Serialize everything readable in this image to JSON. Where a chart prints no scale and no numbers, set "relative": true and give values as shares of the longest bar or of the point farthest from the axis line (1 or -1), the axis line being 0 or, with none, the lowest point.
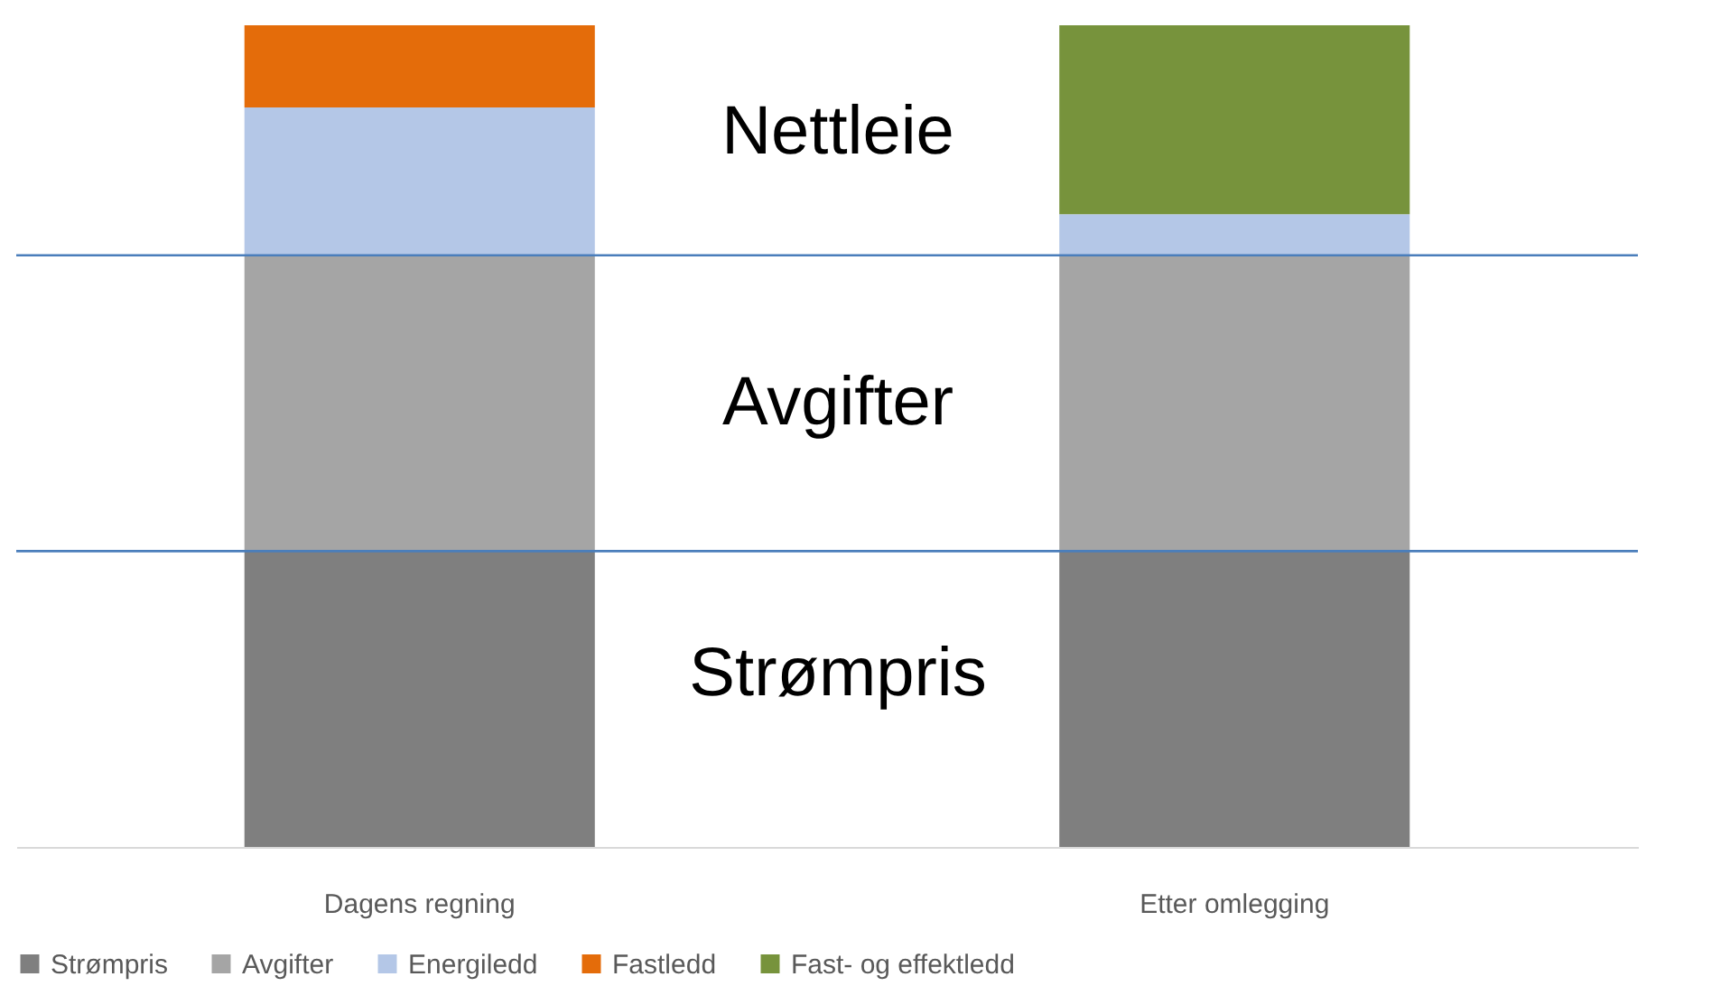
{
  "chart_data": {
    "type": "bar",
    "stacked": true,
    "relative": true,
    "categories": [
      "Dagens regning",
      "Etter omlegging"
    ],
    "series": [
      {
        "name": "Strømpris",
        "color": "#7f7f7f",
        "values": [
          0.36,
          0.36
        ]
      },
      {
        "name": "Avgifter",
        "color": "#a5a5a5",
        "values": [
          0.36,
          0.36
        ]
      },
      {
        "name": "Energiledd",
        "color": "#b4c7e7",
        "values": [
          0.18,
          0.05
        ]
      },
      {
        "name": "Fastledd",
        "color": "#e46c0a",
        "values": [
          0.1,
          null
        ]
      },
      {
        "name": "Fast- og effektledd",
        "color": "#77933c",
        "values": [
          null,
          0.23
        ]
      }
    ],
    "ref_lines": [
      {
        "axis": "y",
        "value": 0.36,
        "color": "#4a7ebb"
      },
      {
        "axis": "y",
        "value": 0.72,
        "color": "#4a7ebb"
      }
    ],
    "annotations": [
      "Nettleie",
      "Avgifter",
      "Strømpris"
    ],
    "legend": "bottom",
    "grid": false
  }
}
